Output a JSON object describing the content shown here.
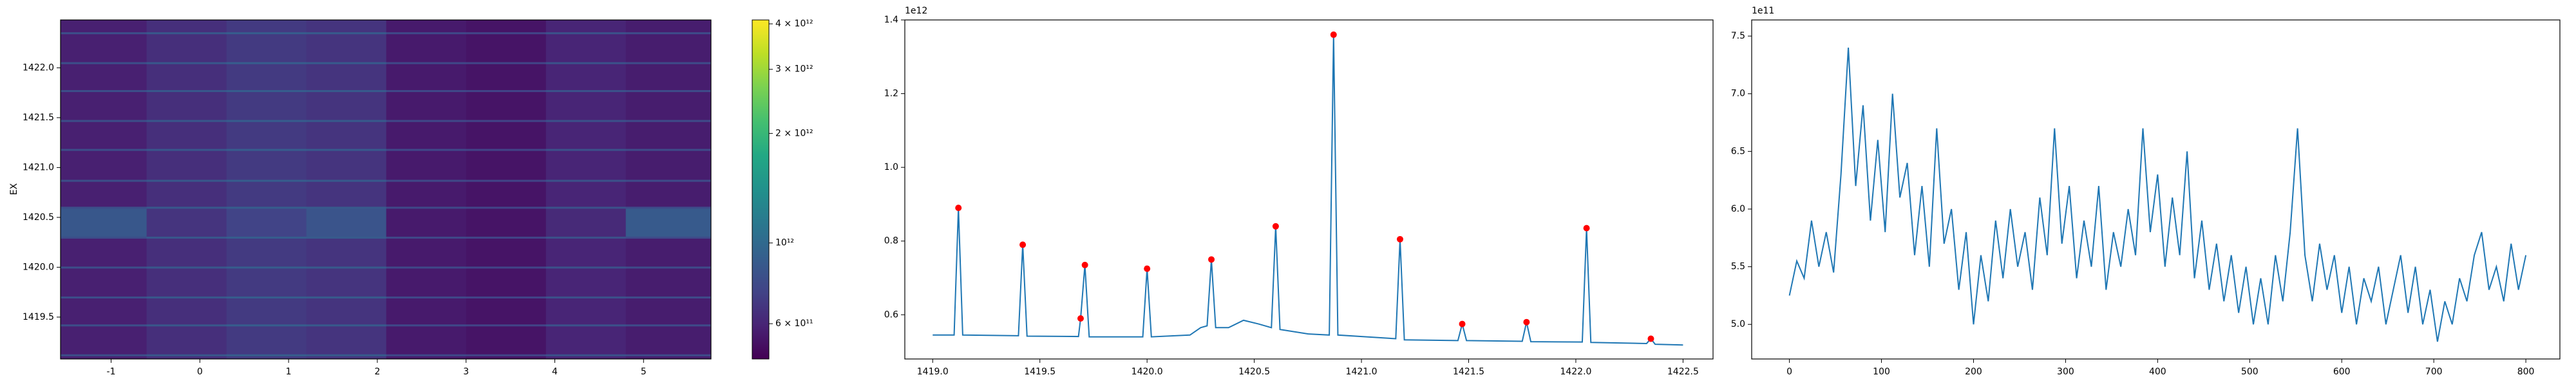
{
  "chart_data": [
    {
      "type": "heatmap",
      "ylabel": "EX",
      "x_edges": [
        -1.57,
        -0.6,
        0.3,
        1.2,
        2.1,
        3.0,
        3.9,
        4.8,
        5.76
      ],
      "y_edges": [
        1419.08,
        1419.11,
        1419.13,
        1419.41,
        1419.43,
        1419.69,
        1419.71,
        1419.99,
        1420.01,
        1420.29,
        1420.31,
        1420.59,
        1420.61,
        1420.86,
        1420.88,
        1421.17,
        1421.19,
        1421.46,
        1421.48,
        1421.76,
        1421.78,
        1422.04,
        1422.06,
        1422.34,
        1422.36,
        1422.48
      ],
      "values": [
        [
          580000000000.0,
          640000000000.0,
          690000000000.0,
          660000000000.0,
          560000000000.0,
          540000000000.0,
          600000000000.0,
          570000000000.0
        ],
        [
          800000000000.0,
          860000000000.0,
          900000000000.0,
          880000000000.0,
          760000000000.0,
          740000000000.0,
          820000000000.0,
          780000000000.0
        ],
        [
          580000000000.0,
          640000000000.0,
          690000000000.0,
          660000000000.0,
          560000000000.0,
          540000000000.0,
          600000000000.0,
          570000000000.0
        ],
        [
          800000000000.0,
          860000000000.0,
          900000000000.0,
          880000000000.0,
          760000000000.0,
          740000000000.0,
          820000000000.0,
          780000000000.0
        ],
        [
          580000000000.0,
          640000000000.0,
          690000000000.0,
          660000000000.0,
          560000000000.0,
          540000000000.0,
          600000000000.0,
          570000000000.0
        ],
        [
          800000000000.0,
          860000000000.0,
          900000000000.0,
          880000000000.0,
          760000000000.0,
          740000000000.0,
          820000000000.0,
          780000000000.0
        ],
        [
          580000000000.0,
          640000000000.0,
          690000000000.0,
          660000000000.0,
          560000000000.0,
          540000000000.0,
          600000000000.0,
          570000000000.0
        ],
        [
          800000000000.0,
          860000000000.0,
          900000000000.0,
          880000000000.0,
          760000000000.0,
          740000000000.0,
          820000000000.0,
          780000000000.0
        ],
        [
          580000000000.0,
          640000000000.0,
          690000000000.0,
          660000000000.0,
          560000000000.0,
          540000000000.0,
          600000000000.0,
          570000000000.0
        ],
        [
          800000000000.0,
          860000000000.0,
          900000000000.0,
          880000000000.0,
          760000000000.0,
          740000000000.0,
          820000000000.0,
          780000000000.0
        ],
        [
          860000000000.0,
          660000000000.0,
          740000000000.0,
          840000000000.0,
          560000000000.0,
          540000000000.0,
          620000000000.0,
          880000000000.0
        ],
        [
          800000000000.0,
          860000000000.0,
          900000000000.0,
          880000000000.0,
          760000000000.0,
          740000000000.0,
          820000000000.0,
          780000000000.0
        ],
        [
          580000000000.0,
          640000000000.0,
          690000000000.0,
          660000000000.0,
          560000000000.0,
          540000000000.0,
          600000000000.0,
          570000000000.0
        ],
        [
          800000000000.0,
          860000000000.0,
          900000000000.0,
          880000000000.0,
          760000000000.0,
          740000000000.0,
          820000000000.0,
          780000000000.0
        ],
        [
          580000000000.0,
          640000000000.0,
          690000000000.0,
          660000000000.0,
          560000000000.0,
          540000000000.0,
          600000000000.0,
          570000000000.0
        ],
        [
          800000000000.0,
          860000000000.0,
          900000000000.0,
          880000000000.0,
          760000000000.0,
          740000000000.0,
          820000000000.0,
          780000000000.0
        ],
        [
          580000000000.0,
          640000000000.0,
          690000000000.0,
          660000000000.0,
          560000000000.0,
          540000000000.0,
          600000000000.0,
          570000000000.0
        ],
        [
          800000000000.0,
          860000000000.0,
          900000000000.0,
          880000000000.0,
          760000000000.0,
          740000000000.0,
          820000000000.0,
          780000000000.0
        ],
        [
          580000000000.0,
          640000000000.0,
          690000000000.0,
          660000000000.0,
          560000000000.0,
          540000000000.0,
          600000000000.0,
          570000000000.0
        ],
        [
          800000000000.0,
          860000000000.0,
          900000000000.0,
          880000000000.0,
          760000000000.0,
          740000000000.0,
          820000000000.0,
          780000000000.0
        ],
        [
          580000000000.0,
          640000000000.0,
          690000000000.0,
          660000000000.0,
          560000000000.0,
          540000000000.0,
          600000000000.0,
          570000000000.0
        ],
        [
          800000000000.0,
          860000000000.0,
          900000000000.0,
          880000000000.0,
          760000000000.0,
          740000000000.0,
          820000000000.0,
          780000000000.0
        ],
        [
          580000000000.0,
          640000000000.0,
          690000000000.0,
          660000000000.0,
          560000000000.0,
          540000000000.0,
          600000000000.0,
          570000000000.0
        ],
        [
          800000000000.0,
          860000000000.0,
          900000000000.0,
          880000000000.0,
          760000000000.0,
          740000000000.0,
          820000000000.0,
          780000000000.0
        ],
        [
          580000000000.0,
          640000000000.0,
          690000000000.0,
          660000000000.0,
          560000000000.0,
          540000000000.0,
          600000000000.0,
          570000000000.0
        ]
      ],
      "xlim": [
        -1.57,
        5.76
      ],
      "ylim": [
        1419.08,
        1422.48
      ],
      "xticks": [
        -1,
        0,
        1,
        2,
        3,
        4,
        5
      ],
      "yticks": [
        1419.5,
        {
          "value": 1420,
          "label": "1420.0"
        },
        1420.5,
        {
          "value": 1421,
          "label": "1421.0"
        },
        1421.5,
        {
          "value": 1422,
          "label": "1422.0"
        }
      ],
      "colorbar": {
        "colormap": "viridis",
        "scale": "log",
        "lim": [
          480000000000.0,
          4100000000000.0
        ],
        "ticks": [
          {
            "value": 600000000000.0,
            "label": "6 × 10¹¹"
          },
          {
            "value": 1000000000000.0,
            "label": "10¹²"
          },
          {
            "value": 2000000000000.0,
            "label": "2 × 10¹²"
          },
          {
            "value": 3000000000000.0,
            "label": "3 × 10¹²"
          },
          {
            "value": 4000000000000.0,
            "label": "4 × 10¹²"
          }
        ]
      }
    },
    {
      "type": "line",
      "offset_text": "1e12",
      "x": [
        1419.0,
        1419.1,
        1419.12,
        1419.14,
        1419.4,
        1419.42,
        1419.44,
        1419.68,
        1419.69,
        1419.71,
        1419.73,
        1419.98,
        1420.0,
        1420.02,
        1420.2,
        1420.25,
        1420.28,
        1420.3,
        1420.32,
        1420.38,
        1420.45,
        1420.52,
        1420.58,
        1420.6,
        1420.62,
        1420.75,
        1420.85,
        1420.87,
        1420.89,
        1421.16,
        1421.18,
        1421.2,
        1421.45,
        1421.47,
        1421.49,
        1421.75,
        1421.77,
        1421.79,
        1422.03,
        1422.05,
        1422.07,
        1422.33,
        1422.35,
        1422.37,
        1422.5
      ],
      "series": [
        {
          "color": "#1f77b4",
          "values": [
            0.545,
            0.545,
            0.89,
            0.545,
            0.543,
            0.79,
            0.542,
            0.541,
            0.59,
            0.735,
            0.54,
            0.54,
            0.725,
            0.54,
            0.545,
            0.565,
            0.57,
            0.75,
            0.565,
            0.565,
            0.585,
            0.575,
            0.565,
            0.84,
            0.56,
            0.548,
            0.545,
            1.36,
            0.545,
            0.535,
            0.805,
            0.532,
            0.53,
            0.575,
            0.53,
            0.528,
            0.58,
            0.527,
            0.526,
            0.835,
            0.525,
            0.522,
            0.535,
            0.52,
            0.518
          ]
        }
      ],
      "markers": {
        "color": "#ff0000",
        "x": [
          1419.12,
          1419.42,
          1419.69,
          1419.71,
          1420.0,
          1420.3,
          1420.6,
          1420.87,
          1421.18,
          1421.47,
          1421.77,
          1422.05,
          1422.35
        ],
        "values": [
          0.89,
          0.79,
          0.59,
          0.735,
          0.725,
          0.75,
          0.84,
          1.36,
          0.805,
          0.575,
          0.58,
          0.835,
          0.535
        ]
      },
      "xlim": [
        1418.87,
        1422.64
      ],
      "ylim": [
        0.48,
        1.4
      ],
      "xticks": [
        {
          "value": 1419,
          "label": "1419.0"
        },
        1419.5,
        {
          "value": 1420,
          "label": "1420.0"
        },
        1420.5,
        {
          "value": 1421,
          "label": "1421.0"
        },
        1421.5,
        {
          "value": 1422,
          "label": "1422.0"
        },
        1422.5
      ],
      "yticks": [
        0.6,
        0.8,
        {
          "value": 1,
          "label": "1.0"
        },
        1.2,
        1.4
      ]
    },
    {
      "type": "line",
      "offset_text": "1e11",
      "x": [
        0,
        8,
        16,
        24,
        32,
        40,
        48,
        56,
        64,
        72,
        80,
        88,
        96,
        104,
        112,
        120,
        128,
        136,
        144,
        152,
        160,
        168,
        176,
        184,
        192,
        200,
        208,
        216,
        224,
        232,
        240,
        248,
        256,
        264,
        272,
        280,
        288,
        296,
        304,
        312,
        320,
        328,
        336,
        344,
        352,
        360,
        368,
        376,
        384,
        392,
        400,
        408,
        416,
        424,
        432,
        440,
        448,
        456,
        464,
        472,
        480,
        488,
        496,
        504,
        512,
        520,
        528,
        536,
        544,
        552,
        560,
        568,
        576,
        584,
        592,
        600,
        608,
        616,
        624,
        632,
        640,
        648,
        656,
        664,
        672,
        680,
        688,
        696,
        704,
        712,
        720,
        728,
        736,
        744,
        752,
        760,
        768,
        776,
        784,
        792,
        800
      ],
      "series": [
        {
          "color": "#1f77b4",
          "values": [
            5.25,
            5.55,
            5.4,
            5.9,
            5.5,
            5.8,
            5.45,
            6.3,
            7.4,
            6.2,
            6.9,
            5.9,
            6.6,
            5.8,
            7.0,
            6.1,
            6.4,
            5.6,
            6.2,
            5.5,
            6.7,
            5.7,
            6.0,
            5.3,
            5.8,
            5.0,
            5.6,
            5.2,
            5.9,
            5.4,
            6.0,
            5.5,
            5.8,
            5.3,
            6.1,
            5.6,
            6.7,
            5.7,
            6.2,
            5.4,
            5.9,
            5.5,
            6.2,
            5.3,
            5.8,
            5.5,
            6.0,
            5.6,
            6.7,
            5.8,
            6.3,
            5.5,
            6.1,
            5.6,
            6.5,
            5.4,
            5.9,
            5.3,
            5.7,
            5.2,
            5.6,
            5.1,
            5.5,
            5.0,
            5.4,
            5.0,
            5.6,
            5.2,
            5.8,
            6.7,
            5.6,
            5.2,
            5.7,
            5.3,
            5.6,
            5.1,
            5.5,
            5.0,
            5.4,
            5.2,
            5.5,
            5.0,
            5.3,
            5.6,
            5.1,
            5.5,
            5.0,
            5.3,
            4.85,
            5.2,
            5.0,
            5.4,
            5.2,
            5.6,
            5.8,
            5.3,
            5.5,
            5.2,
            5.7,
            5.3,
            5.6
          ]
        }
      ],
      "xlim": [
        -41,
        837
      ],
      "ylim": [
        4.7,
        7.64
      ],
      "xticks": [
        0,
        100,
        200,
        300,
        400,
        500,
        600,
        700,
        800
      ],
      "yticks": [
        {
          "value": 5,
          "label": "5.0"
        },
        5.5,
        {
          "value": 6,
          "label": "6.0"
        },
        6.5,
        {
          "value": 7,
          "label": "7.0"
        },
        7.5
      ]
    }
  ]
}
